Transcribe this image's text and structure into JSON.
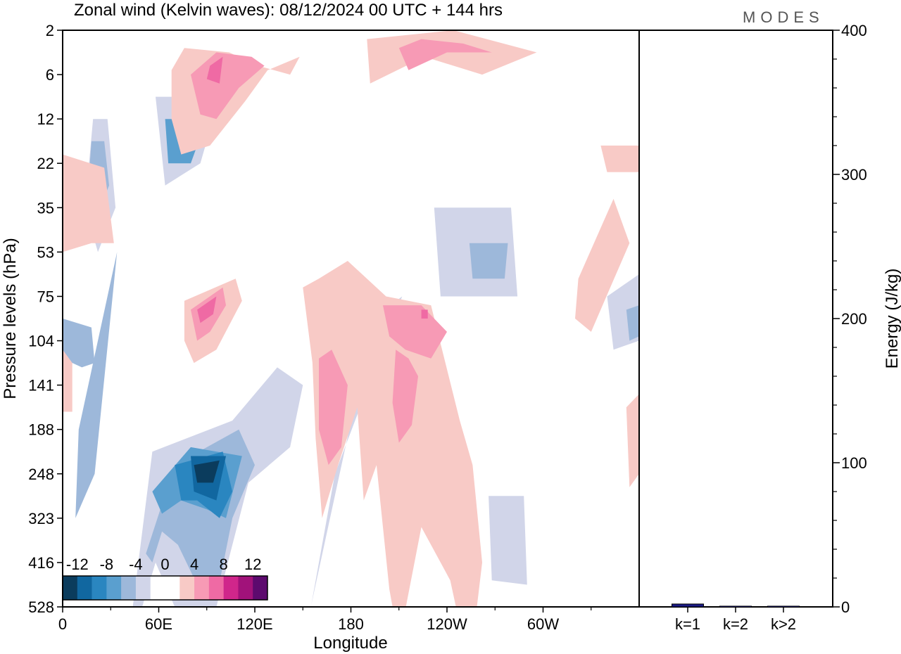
{
  "chart_data": {
    "type": "heatmap",
    "title": "Zonal wind (Kelvin waves):  08/12/2024  00 UTC  + 144 hrs",
    "logo_text": "MODES",
    "xlabel": "Longitude",
    "ylabel": "Pressure levels (hPa)",
    "x_ticks": [
      {
        "lon": 0,
        "label": "0"
      },
      {
        "lon": 60,
        "label": "60E"
      },
      {
        "lon": 120,
        "label": "120E"
      },
      {
        "lon": 180,
        "label": "180"
      },
      {
        "lon": 240,
        "label": "120W"
      },
      {
        "lon": 300,
        "label": "60W"
      }
    ],
    "xlim": [
      0,
      360
    ],
    "y_levels": [
      "2",
      "6",
      "12",
      "22",
      "35",
      "53",
      "75",
      "104",
      "141",
      "188",
      "248",
      "323",
      "416",
      "528"
    ],
    "colorbar": {
      "labels": [
        "-12",
        "-8",
        "-4",
        "0",
        "4",
        "8",
        "12"
      ],
      "colors": [
        "#0b3c5d",
        "#1167a0",
        "#2a86c0",
        "#5a9fcf",
        "#9db8da",
        "#d1d5e9",
        "#ffffff",
        "#ffffff",
        "#f8cac6",
        "#f79ab5",
        "#ef6aa4",
        "#d0268b",
        "#a1127a",
        "#5d0a6e"
      ]
    },
    "contour_regions": [
      {
        "level": -2,
        "points": [
          [
            19,
            2
          ],
          [
            28,
            2
          ],
          [
            33,
            4
          ],
          [
            22,
            5
          ],
          [
            14,
            4
          ]
        ]
      },
      {
        "level": -4,
        "points": [
          [
            18,
            2.5
          ],
          [
            26,
            2.5
          ],
          [
            29,
            3.5
          ],
          [
            21,
            4.2
          ],
          [
            16,
            3.5
          ]
        ]
      },
      {
        "level": -2,
        "points": [
          [
            58,
            1.5
          ],
          [
            98,
            1.5
          ],
          [
            86,
            3
          ],
          [
            64,
            3.5
          ]
        ]
      },
      {
        "level": -6,
        "points": [
          [
            64,
            2
          ],
          [
            90,
            2
          ],
          [
            80,
            3
          ],
          [
            66,
            3
          ]
        ]
      },
      {
        "level": -2,
        "points": [
          [
            232,
            4
          ],
          [
            280,
            4
          ],
          [
            284,
            6
          ],
          [
            236,
            6
          ]
        ]
      },
      {
        "level": -4,
        "points": [
          [
            254,
            4.8
          ],
          [
            278,
            4.8
          ],
          [
            276,
            5.6
          ],
          [
            256,
            5.6
          ]
        ]
      },
      {
        "level": -2,
        "points": [
          [
            146,
            14.5
          ],
          [
            194,
            6.5
          ],
          [
            212,
            6
          ],
          [
            170,
            10
          ],
          [
            150,
            14
          ]
        ]
      },
      {
        "level": -4,
        "points": [
          [
            10,
            9
          ],
          [
            34,
            5
          ],
          [
            20,
            10
          ],
          [
            8,
            11
          ]
        ]
      },
      {
        "level": -4,
        "points": [
          [
            0,
            6.5
          ],
          [
            18,
            6.7
          ],
          [
            20,
            7.5
          ],
          [
            12,
            7.6
          ],
          [
            0,
            7.4
          ]
        ]
      },
      {
        "level": -2,
        "points": [
          [
            42,
            13.5
          ],
          [
            56,
            9.5
          ],
          [
            106,
            8.8
          ],
          [
            134,
            7.6
          ],
          [
            150,
            8
          ],
          [
            142,
            9.4
          ],
          [
            116,
            10.2
          ],
          [
            96,
            13
          ],
          [
            76,
            13.5
          ],
          [
            58,
            12
          ],
          [
            48,
            13.2
          ]
        ]
      },
      {
        "level": -4,
        "points": [
          [
            52,
            11.8
          ],
          [
            70,
            9.8
          ],
          [
            110,
            9
          ],
          [
            120,
            9.8
          ],
          [
            106,
            11
          ],
          [
            96,
            12.8
          ],
          [
            84,
            12.5
          ],
          [
            72,
            11.6
          ],
          [
            62,
            11.3
          ],
          [
            56,
            12
          ]
        ]
      },
      {
        "level": -6,
        "points": [
          [
            56,
            10.4
          ],
          [
            80,
            9.4
          ],
          [
            112,
            9.6
          ],
          [
            102,
            11
          ],
          [
            90,
            10.8
          ],
          [
            74,
            10.6
          ],
          [
            62,
            10.9
          ]
        ]
      },
      {
        "level": -8,
        "points": [
          [
            70,
            9.8
          ],
          [
            100,
            9.5
          ],
          [
            106,
            10.4
          ],
          [
            98,
            11
          ],
          [
            84,
            10.6
          ],
          [
            74,
            10.6
          ]
        ]
      },
      {
        "level": -10,
        "points": [
          [
            80,
            9.6
          ],
          [
            102,
            9.6
          ],
          [
            96,
            10.6
          ],
          [
            82,
            10.4
          ]
        ]
      },
      {
        "level": -12,
        "points": [
          [
            82,
            9.8
          ],
          [
            98,
            9.7
          ],
          [
            94,
            10.2
          ],
          [
            84,
            10.2
          ]
        ]
      },
      {
        "level": -2,
        "points": [
          [
            266,
            10.5
          ],
          [
            288,
            10.5
          ],
          [
            290,
            12.5
          ],
          [
            268,
            12.4
          ]
        ]
      },
      {
        "level": -2,
        "points": [
          [
            340,
            6
          ],
          [
            360,
            5.5
          ],
          [
            360,
            7
          ],
          [
            344,
            7.2
          ]
        ]
      },
      {
        "level": -4,
        "points": [
          [
            352,
            6.3
          ],
          [
            360,
            6.2
          ],
          [
            360,
            6.9
          ],
          [
            354,
            7
          ]
        ]
      },
      {
        "level": 2,
        "points": [
          [
            68,
            0.9
          ],
          [
            76,
            0.4
          ],
          [
            104,
            0.5
          ],
          [
            122,
            0.8
          ],
          [
            142,
            1
          ],
          [
            148,
            0.6
          ],
          [
            128,
            0.9
          ],
          [
            114,
            1.6
          ],
          [
            92,
            2.6
          ],
          [
            74,
            2.8
          ],
          [
            68,
            2
          ]
        ]
      },
      {
        "level": 4,
        "points": [
          [
            80,
            1
          ],
          [
            96,
            0.5
          ],
          [
            118,
            0.6
          ],
          [
            126,
            0.8
          ],
          [
            110,
            1.3
          ],
          [
            96,
            2
          ],
          [
            86,
            1.9
          ]
        ]
      },
      {
        "level": 6,
        "points": [
          [
            92,
            0.8
          ],
          [
            100,
            0.6
          ],
          [
            98,
            1.2
          ],
          [
            90,
            1.1
          ]
        ]
      },
      {
        "level": 2,
        "points": [
          [
            190,
            0.2
          ],
          [
            244,
            0
          ],
          [
            296,
            0.5
          ],
          [
            262,
            1
          ],
          [
            226,
            0.6
          ],
          [
            192,
            1.2
          ]
        ]
      },
      {
        "level": 4,
        "points": [
          [
            210,
            0.4
          ],
          [
            224,
            0.2
          ],
          [
            250,
            0.3
          ],
          [
            268,
            0.5
          ],
          [
            240,
            0.5
          ],
          [
            216,
            0.9
          ]
        ]
      },
      {
        "level": 2,
        "points": [
          [
            150,
            5.8
          ],
          [
            160,
            5.6
          ],
          [
            178,
            5.2
          ],
          [
            202,
            6
          ],
          [
            230,
            6.2
          ],
          [
            248,
            8.8
          ],
          [
            256,
            9.8
          ],
          [
            262,
            12
          ],
          [
            258,
            13.2
          ],
          [
            248,
            13.4
          ],
          [
            242,
            12.4
          ],
          [
            224,
            11.2
          ],
          [
            210,
            13.8
          ],
          [
            204,
            12.6
          ],
          [
            196,
            9.8
          ],
          [
            188,
            10.6
          ],
          [
            184,
            8.5
          ],
          [
            172,
            9.8
          ],
          [
            162,
            11
          ],
          [
            158,
            9.2
          ],
          [
            156,
            7.5
          ]
        ]
      },
      {
        "level": 4,
        "points": [
          [
            160,
            7.4
          ],
          [
            168,
            7.2
          ],
          [
            178,
            8
          ],
          [
            174,
            9.4
          ],
          [
            166,
            9.8
          ],
          [
            160,
            9
          ]
        ]
      },
      {
        "level": 4,
        "points": [
          [
            208,
            7.2
          ],
          [
            216,
            7.4
          ],
          [
            222,
            7.8
          ],
          [
            218,
            8.9
          ],
          [
            210,
            9.3
          ],
          [
            206,
            8.4
          ]
        ]
      },
      {
        "level": 4,
        "points": [
          [
            200,
            6.2
          ],
          [
            224,
            6.2
          ],
          [
            240,
            6.8
          ],
          [
            230,
            7.4
          ],
          [
            214,
            7.2
          ],
          [
            204,
            6.9
          ]
        ]
      },
      {
        "level": 6,
        "points": [
          [
            224,
            6.3
          ],
          [
            228,
            6.3
          ],
          [
            228,
            6.5
          ],
          [
            224,
            6.5
          ]
        ]
      },
      {
        "level": 2,
        "points": [
          [
            0,
            2.8
          ],
          [
            26,
            3.1
          ],
          [
            32,
            4.8
          ],
          [
            18,
            4.8
          ],
          [
            0,
            5
          ]
        ]
      },
      {
        "level": 2,
        "points": [
          [
            322,
            5.6
          ],
          [
            344,
            3.8
          ],
          [
            354,
            4.8
          ],
          [
            342,
            5.8
          ],
          [
            330,
            6.8
          ],
          [
            320,
            6.5
          ]
        ]
      },
      {
        "level": 2,
        "points": [
          [
            336,
            2.6
          ],
          [
            360,
            2.6
          ],
          [
            360,
            3.2
          ],
          [
            340,
            3.2
          ]
        ]
      },
      {
        "level": 2,
        "points": [
          [
            352,
            8.5
          ],
          [
            360,
            8.2
          ],
          [
            360,
            10
          ],
          [
            354,
            10.3
          ]
        ]
      },
      {
        "level": 2,
        "points": [
          [
            0,
            7.2
          ],
          [
            6,
            7.5
          ],
          [
            6,
            8.6
          ],
          [
            0,
            8.6
          ]
        ]
      },
      {
        "level": 2,
        "points": [
          [
            76,
            6.1
          ],
          [
            108,
            5.6
          ],
          [
            112,
            6.1
          ],
          [
            96,
            7.2
          ],
          [
            82,
            7.5
          ],
          [
            76,
            7
          ]
        ]
      },
      {
        "level": 4,
        "points": [
          [
            80,
            6.3
          ],
          [
            100,
            5.8
          ],
          [
            102,
            6.2
          ],
          [
            92,
            6.8
          ],
          [
            84,
            7
          ]
        ]
      },
      {
        "level": 6,
        "points": [
          [
            84,
            6.3
          ],
          [
            96,
            6
          ],
          [
            94,
            6.4
          ],
          [
            86,
            6.6
          ]
        ]
      }
    ],
    "bars": [
      {
        "label": "k=1",
        "value": 2,
        "color": "#1c1c86"
      },
      {
        "label": "k=2",
        "value": 0.5,
        "color": "#1c1c86"
      },
      {
        "label": "k>2",
        "value": 0.5,
        "color": "#1c1c86"
      }
    ],
    "energy_axis": {
      "label": "Energy (J/kg)",
      "ylim": [
        0,
        400
      ],
      "ticks": [
        "0",
        "100",
        "200",
        "300",
        "400"
      ]
    }
  }
}
